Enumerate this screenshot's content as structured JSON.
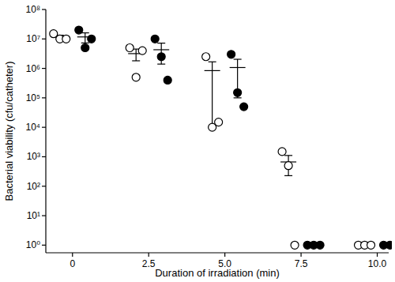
{
  "chart_data": {
    "type": "scatter",
    "x_label": "Duration of irradiation (min)",
    "y_label": "Bacterial viability (cfu/catheter)",
    "categories": [
      "0",
      "2.5",
      "5.0",
      "7.5",
      "10.0"
    ],
    "log": "y",
    "ylim": [
      0.55,
      100000000
    ],
    "yticks": [
      {
        "value": 1,
        "label": "10⁰"
      },
      {
        "value": 10,
        "label": "10¹"
      },
      {
        "value": 100,
        "label": "10²"
      },
      {
        "value": 1000,
        "label": "10³"
      },
      {
        "value": 10000,
        "label": "10⁴"
      },
      {
        "value": 100000,
        "label": "10⁵"
      },
      {
        "value": 1000000,
        "label": "10⁶"
      },
      {
        "value": 10000000,
        "label": "10⁷"
      },
      {
        "value": 100000000,
        "label": "10⁸"
      }
    ],
    "series": [
      {
        "color": "#000000",
        "marker": "open",
        "values": [
          [
            15000000,
            10000000,
            10000000
          ],
          [
            5000000,
            500000,
            4000000
          ],
          [
            2500000,
            10000,
            15000
          ],
          [
            1500,
            500,
            1
          ],
          [
            1,
            1,
            1
          ]
        ],
        "means": [
          11700000,
          3170000,
          840000,
          667,
          1
        ],
        "errors": [
          1700000,
          1360000,
          830000,
          439,
          0
        ]
      },
      {
        "color": "#000000",
        "marker": "filled",
        "values": [
          [
            20000000,
            5000000,
            10000000
          ],
          [
            10000000,
            2500000,
            400000
          ],
          [
            3000000,
            150000,
            50000
          ],
          [
            1,
            1,
            1
          ],
          [
            1,
            1,
            1
          ]
        ],
        "means": [
          11700000,
          4300000,
          1070000,
          1,
          1
        ],
        "errors": [
          4400000,
          2900000,
          970000,
          0,
          0
        ]
      }
    ]
  }
}
